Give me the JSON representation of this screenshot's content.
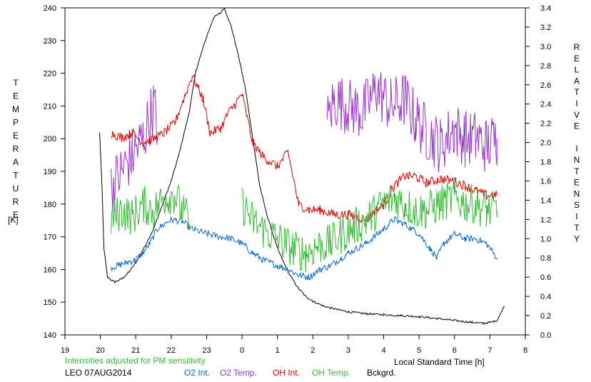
{
  "chart_data": {
    "type": "line",
    "xlabel": "Local Standard Time [h]",
    "ylabel_left_letters": [
      "T",
      "E",
      "M",
      "P",
      "E",
      "R",
      "A",
      "T",
      "U",
      "R",
      "E"
    ],
    "ylabel_left_unit": "[K]",
    "ylabel_right_letters": [
      "R",
      "E",
      "L",
      "A",
      "T",
      "I",
      "V",
      "E",
      "",
      "I",
      "N",
      "T",
      "E",
      "N",
      "S",
      "I",
      "T",
      "Y"
    ],
    "note": "Intensities adjusted for PM sensitivity",
    "station": "LEO 07AUG2014",
    "x_range": [
      19,
      32
    ],
    "x_ticks": [
      19,
      20,
      21,
      22,
      23,
      24,
      25,
      26,
      27,
      28,
      29,
      30,
      31,
      32
    ],
    "x_tick_labels": [
      "19",
      "20",
      "21",
      "22",
      "23",
      "0",
      "1",
      "2",
      "3",
      "4",
      "5",
      "6",
      "7",
      "8"
    ],
    "y_left_range": [
      140,
      240
    ],
    "y_left_ticks": [
      140,
      150,
      160,
      170,
      180,
      190,
      200,
      210,
      220,
      230,
      240
    ],
    "y_right_range": [
      0.0,
      3.4
    ],
    "y_right_ticks": [
      "0.0",
      "0.2",
      "0.4",
      "0.6",
      "0.8",
      "1.0",
      "1.2",
      "1.4",
      "1.6",
      "1.8",
      "2.0",
      "2.2",
      "2.4",
      "2.6",
      "2.8",
      "3.0",
      "3.2",
      "3.4"
    ],
    "legend": [
      {
        "name": "O2 Int.",
        "color": "#0066cc"
      },
      {
        "name": "O2 Temp.",
        "color": "#9933cc"
      },
      {
        "name": "OH Int.",
        "color": "#dd0000"
      },
      {
        "name": "OH Temp.",
        "color": "#33bb33"
      },
      {
        "name": "Bckgrd.",
        "color": "#000000"
      }
    ],
    "series": [
      {
        "key": "bckgrd",
        "axis": "right",
        "color": "#000000",
        "noise": 0.01,
        "x": [
          19.98,
          20.05,
          20.1,
          20.2,
          20.4,
          20.6,
          20.8,
          21.0,
          21.2,
          21.5,
          21.8,
          22.0,
          22.2,
          22.5,
          22.7,
          23.0,
          23.2,
          23.4,
          23.5,
          23.7,
          23.9,
          24.1,
          24.3,
          24.5,
          24.7,
          25.0,
          25.3,
          25.6,
          25.8,
          26.0,
          26.3,
          26.6,
          27.0,
          27.5,
          28.0,
          28.5,
          29.0,
          29.5,
          30.0,
          30.5,
          30.8,
          31.0,
          31.2,
          31.3,
          31.4
        ],
        "y": [
          2.1,
          1.5,
          0.9,
          0.6,
          0.55,
          0.58,
          0.65,
          0.75,
          0.88,
          1.1,
          1.4,
          1.6,
          1.85,
          2.3,
          2.75,
          3.1,
          3.3,
          3.35,
          3.4,
          3.2,
          2.9,
          2.55,
          2.05,
          1.55,
          1.25,
          0.9,
          0.65,
          0.48,
          0.4,
          0.35,
          0.3,
          0.27,
          0.24,
          0.22,
          0.21,
          0.2,
          0.19,
          0.17,
          0.15,
          0.13,
          0.12,
          0.13,
          0.15,
          0.22,
          0.3
        ]
      },
      {
        "key": "o2_int",
        "axis": "right",
        "color": "#0066cc",
        "noise": 0.035,
        "x": [
          20.3,
          20.5,
          20.7,
          21.0,
          21.2,
          21.4,
          21.6,
          22.0,
          22.3,
          22.6,
          23.0,
          23.4,
          23.7,
          24.0,
          24.3,
          24.6,
          25.0,
          25.3,
          25.6,
          25.9,
          26.2,
          26.5,
          26.8,
          27.0,
          27.5,
          28.0,
          28.3,
          28.6,
          29.0,
          29.3,
          29.5,
          29.7,
          30.0,
          30.3,
          30.6,
          30.9,
          31.2
        ],
        "y": [
          0.7,
          0.72,
          0.75,
          0.78,
          0.85,
          0.95,
          1.1,
          1.2,
          1.18,
          1.1,
          1.05,
          1.02,
          1.0,
          0.95,
          0.85,
          0.78,
          0.72,
          0.68,
          0.62,
          0.6,
          0.68,
          0.72,
          0.8,
          0.85,
          0.95,
          1.1,
          1.2,
          1.15,
          1.05,
          0.9,
          0.8,
          0.95,
          1.05,
          1.0,
          1.0,
          0.95,
          0.8
        ]
      },
      {
        "key": "o2_temp",
        "axis": "left",
        "color": "#9933cc",
        "noise": 9,
        "x": [
          20.3,
          20.6,
          20.9,
          21.2,
          21.5,
          21.6,
          26.4,
          26.6,
          27.0,
          27.4,
          27.8,
          28.2,
          28.6,
          28.9,
          29.2,
          29.6,
          30.0,
          30.3,
          30.6,
          30.9,
          31.2
        ],
        "y": [
          185,
          190,
          195,
          200,
          210,
          205,
          205,
          212,
          210,
          208,
          215,
          210,
          212,
          206,
          202,
          198,
          203,
          200,
          200,
          198,
          200
        ]
      },
      {
        "key": "oh_int",
        "axis": "right",
        "color": "#dd0000",
        "noise": 0.05,
        "x": [
          20.3,
          20.6,
          20.9,
          21.2,
          21.6,
          21.8,
          22.1,
          22.4,
          22.6,
          22.9,
          23.1,
          23.4,
          23.6,
          24.0,
          24.3,
          24.6,
          25.0,
          25.3,
          25.6,
          25.9,
          26.2,
          26.6,
          27.0,
          27.5,
          27.8,
          28.0,
          28.3,
          28.6,
          28.9,
          29.2,
          29.6,
          30.0,
          30.3,
          30.6,
          30.9,
          31.2
        ],
        "y": [
          2.1,
          2.05,
          2.1,
          2.0,
          2.05,
          2.1,
          2.2,
          2.5,
          2.7,
          2.45,
          2.1,
          2.15,
          2.3,
          2.5,
          2.0,
          1.85,
          1.75,
          1.9,
          1.35,
          1.3,
          1.3,
          1.25,
          1.25,
          1.2,
          1.3,
          1.35,
          1.55,
          1.65,
          1.65,
          1.58,
          1.62,
          1.6,
          1.55,
          1.5,
          1.45,
          1.45
        ]
      },
      {
        "key": "oh_temp",
        "axis": "left",
        "color": "#33bb33",
        "noise": 6,
        "x": [
          20.3,
          20.6,
          20.9,
          21.2,
          21.5,
          21.8,
          22.1,
          22.3,
          22.5,
          24.0,
          24.3,
          24.6,
          24.9,
          25.2,
          25.5,
          25.8,
          26.1,
          26.5,
          27.0,
          27.5,
          28.0,
          28.3,
          28.6,
          28.9,
          29.2,
          29.6,
          30.0,
          30.3,
          30.6,
          30.9,
          31.2
        ],
        "y": [
          175,
          178,
          176,
          180,
          178,
          182,
          183,
          178,
          175,
          180,
          175,
          172,
          170,
          168,
          166,
          165,
          167,
          168,
          172,
          175,
          180,
          182,
          180,
          178,
          178,
          180,
          182,
          180,
          180,
          178,
          178
        ]
      }
    ]
  }
}
